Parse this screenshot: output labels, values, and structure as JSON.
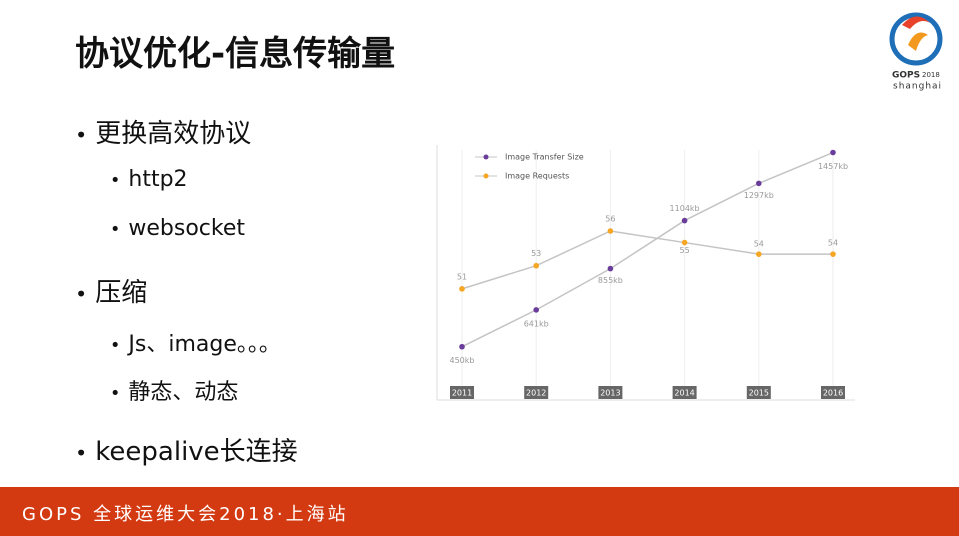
{
  "slide": {
    "title": "协议优化-信息传输量",
    "bullets": [
      {
        "text": "更换高效协议",
        "sub": [
          "http2",
          "websocket"
        ]
      },
      {
        "text": "压缩",
        "sub": [
          "Js、image。。。",
          "静态、动态"
        ]
      },
      {
        "text": "keepalive长连接"
      }
    ]
  },
  "logo": {
    "name": "GOPS",
    "year": "2018",
    "city": "shanghai"
  },
  "footer": "GOPS 全球运维大会2018·上海站",
  "chart_data": {
    "type": "line",
    "categories": [
      "2011",
      "2012",
      "2013",
      "2014",
      "2015",
      "2016"
    ],
    "series": [
      {
        "name": "Image Transfer Size",
        "color": "#6a3d9a",
        "values": [
          450,
          641,
          855,
          1104,
          1297,
          1457
        ],
        "value_labels": [
          "450kb",
          "641kb",
          "855kb",
          "1104kb",
          "1297kb",
          "1457kb"
        ]
      },
      {
        "name": "Image Requests",
        "color": "#f5a623",
        "axis": "y2",
        "values": [
          51,
          53,
          56,
          55,
          54,
          54
        ]
      }
    ],
    "ylim": [
      210,
      1470
    ],
    "y2lim": [
      42,
      63
    ],
    "legend": "top-left",
    "grid": true
  }
}
